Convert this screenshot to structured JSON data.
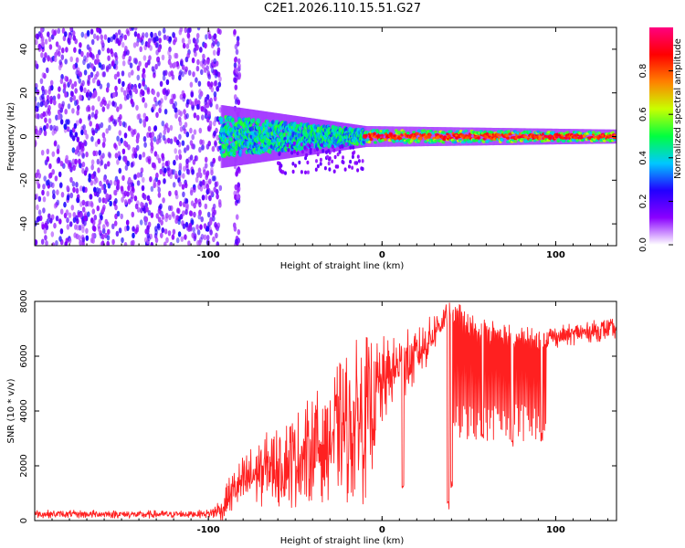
{
  "title": "C2E1.2026.110.15.51.G27",
  "chart_data": [
    {
      "type": "heatmap",
      "title": "C2E1.2026.110.15.51.G27",
      "xlabel": "Height of straight line (km)",
      "ylabel": "Frequency (Hz)",
      "xlim": [
        -200,
        135
      ],
      "ylim": [
        -50,
        50
      ],
      "x_ticks": [
        -100,
        0,
        100
      ],
      "y_ticks": [
        -40,
        -20,
        0,
        20,
        40
      ],
      "colorbar": {
        "label": "Normalized spectral amplitude",
        "range": [
          0,
          1
        ],
        "ticks": [
          0.0,
          0.2,
          0.4,
          0.6,
          0.8
        ],
        "tick_labels": [
          "0.0",
          "0.2",
          "0.4",
          "0.6",
          "0.8"
        ],
        "colors": [
          "#ffffff",
          "#8a00ff",
          "#2200ff",
          "#00c8ff",
          "#00ff40",
          "#c8ff00",
          "#ff8000",
          "#ff0000",
          "#ff0080"
        ]
      },
      "regions": [
        {
          "name": "noise",
          "x_range": [
            -200,
            -93
          ],
          "freq_range": [
            -50,
            50
          ],
          "level": 0.15
        },
        {
          "name": "noise-strip",
          "x_range": [
            -85,
            -82
          ],
          "freq_range": [
            -50,
            50
          ],
          "level": 0.12
        },
        {
          "name": "broad-signal",
          "x_range": [
            -93,
            -10
          ],
          "freq_center": 0,
          "half_width": [
            9,
            3
          ],
          "level": 0.45
        },
        {
          "name": "narrow-signal",
          "x_range": [
            -10,
            135
          ],
          "freq_center": 0,
          "half_width": [
            3,
            2
          ],
          "level": 0.85
        }
      ]
    },
    {
      "type": "line",
      "xlabel": "Height of straight line (km)",
      "ylabel": "SNR (10 * v/v)",
      "xlim": [
        -200,
        135
      ],
      "ylim": [
        0,
        8000
      ],
      "x_ticks": [
        -100,
        0,
        100
      ],
      "y_ticks": [
        0,
        2000,
        4000,
        6000,
        8000
      ],
      "color": "#ff2020",
      "series": [
        {
          "name": "SNR",
          "x": [
            -200,
            -180,
            -160,
            -140,
            -120,
            -100,
            -92,
            -88,
            -84,
            -80,
            -70,
            -60,
            -50,
            -40,
            -30,
            -20,
            -15,
            -10,
            -5,
            0,
            5,
            10,
            15,
            20,
            25,
            30,
            35,
            38,
            40,
            45,
            50,
            60,
            70,
            80,
            90,
            95,
            100,
            110,
            120,
            135
          ],
          "values": [
            250,
            230,
            240,
            220,
            230,
            250,
            400,
            900,
            1200,
            1400,
            1800,
            2000,
            2200,
            2600,
            3000,
            3400,
            3600,
            3800,
            4400,
            5000,
            5300,
            5700,
            5800,
            6000,
            6400,
            6900,
            7300,
            7500,
            7400,
            7400,
            7000,
            6900,
            6700,
            6600,
            6500,
            6700,
            6700,
            6800,
            6900,
            7000
          ],
          "spread": [
            150,
            150,
            150,
            150,
            150,
            150,
            500,
            700,
            800,
            1000,
            1300,
            1500,
            1800,
            2000,
            2300,
            2800,
            3000,
            3200,
            2400,
            1800,
            1300,
            1200,
            1200,
            1000,
            900,
            700,
            600,
            500,
            500,
            500,
            500,
            500,
            500,
            500,
            500,
            400,
            400,
            400,
            400,
            400
          ]
        }
      ],
      "dips": [
        {
          "x": 12,
          "value": 1100
        },
        {
          "x": 38,
          "value": 400
        },
        {
          "x": 40,
          "value": 1200
        },
        {
          "x": 58,
          "value": 2900
        },
        {
          "x": 75,
          "value": 2700
        },
        {
          "x": 92,
          "value": 2900
        }
      ]
    }
  ]
}
